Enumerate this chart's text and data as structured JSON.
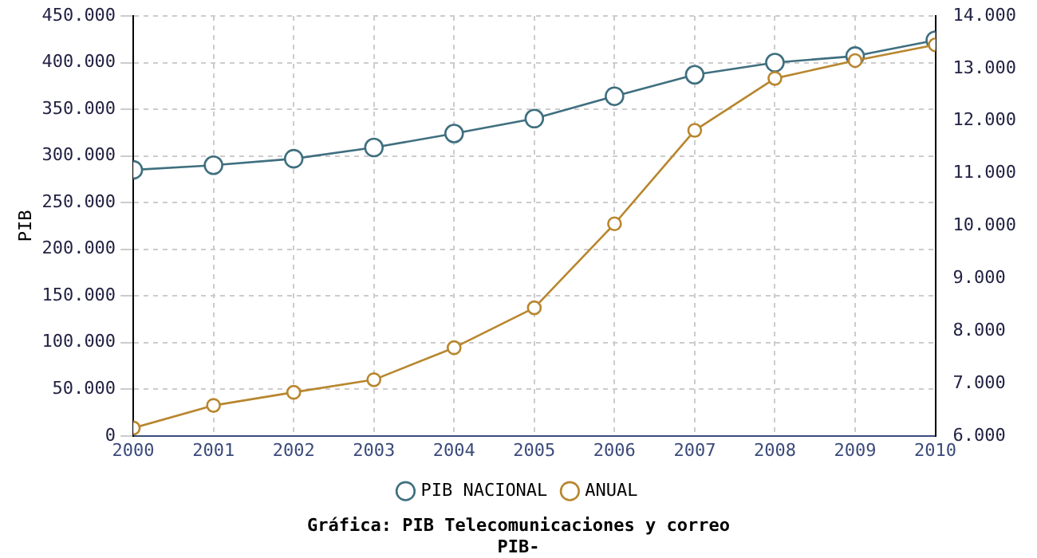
{
  "chart_data": {
    "type": "line",
    "title": "Gráfica: PIB Telecomunicaciones y correo",
    "subtitle": "PIB-",
    "ylabel": "PIB",
    "x": [
      2000,
      2001,
      2002,
      2003,
      2004,
      2005,
      2006,
      2007,
      2008,
      2009,
      2010
    ],
    "xlim": [
      2000,
      2010
    ],
    "xticks": [
      2000,
      2001,
      2002,
      2003,
      2004,
      2005,
      2006,
      2007,
      2008,
      2009,
      2010
    ],
    "ylim": [
      0,
      450000
    ],
    "yticks": [
      {
        "value": 0,
        "label": "0"
      },
      {
        "value": 50000,
        "label": "50.000"
      },
      {
        "value": 100000,
        "label": "100.000"
      },
      {
        "value": 150000,
        "label": "150.000"
      },
      {
        "value": 200000,
        "label": "200.000"
      },
      {
        "value": 250000,
        "label": "250.000"
      },
      {
        "value": 300000,
        "label": "300.000"
      },
      {
        "value": 350000,
        "label": "350.000"
      },
      {
        "value": 400000,
        "label": "400.000"
      },
      {
        "value": 450000,
        "label": "450.000"
      }
    ],
    "y2lim": [
      6000,
      14000
    ],
    "y2ticks": [
      {
        "value": 6000,
        "label": "6.000"
      },
      {
        "value": 7000,
        "label": "7.000"
      },
      {
        "value": 8000,
        "label": "8.000"
      },
      {
        "value": 9000,
        "label": "9.000"
      },
      {
        "value": 10000,
        "label": "10.000"
      },
      {
        "value": 11000,
        "label": "11.000"
      },
      {
        "value": 12000,
        "label": "12.000"
      },
      {
        "value": 13000,
        "label": "13.000"
      },
      {
        "value": 14000,
        "label": "14.000"
      }
    ],
    "series": [
      {
        "name": "PIB NACIONAL",
        "color": "#3f6f7f",
        "values": [
          285000,
          290000,
          297000,
          309000,
          324000,
          340000,
          364000,
          387000,
          400000,
          407000,
          424000
        ]
      },
      {
        "name": "ANUAL",
        "color": "#b8862e",
        "axis": "y2",
        "values": [
          6150,
          6580,
          6830,
          7070,
          7680,
          8440,
          10040,
          11820,
          12810,
          13150,
          13450
        ]
      }
    ],
    "grid": true,
    "legend": "bottom",
    "marker": "circle",
    "line_style": "solid"
  }
}
